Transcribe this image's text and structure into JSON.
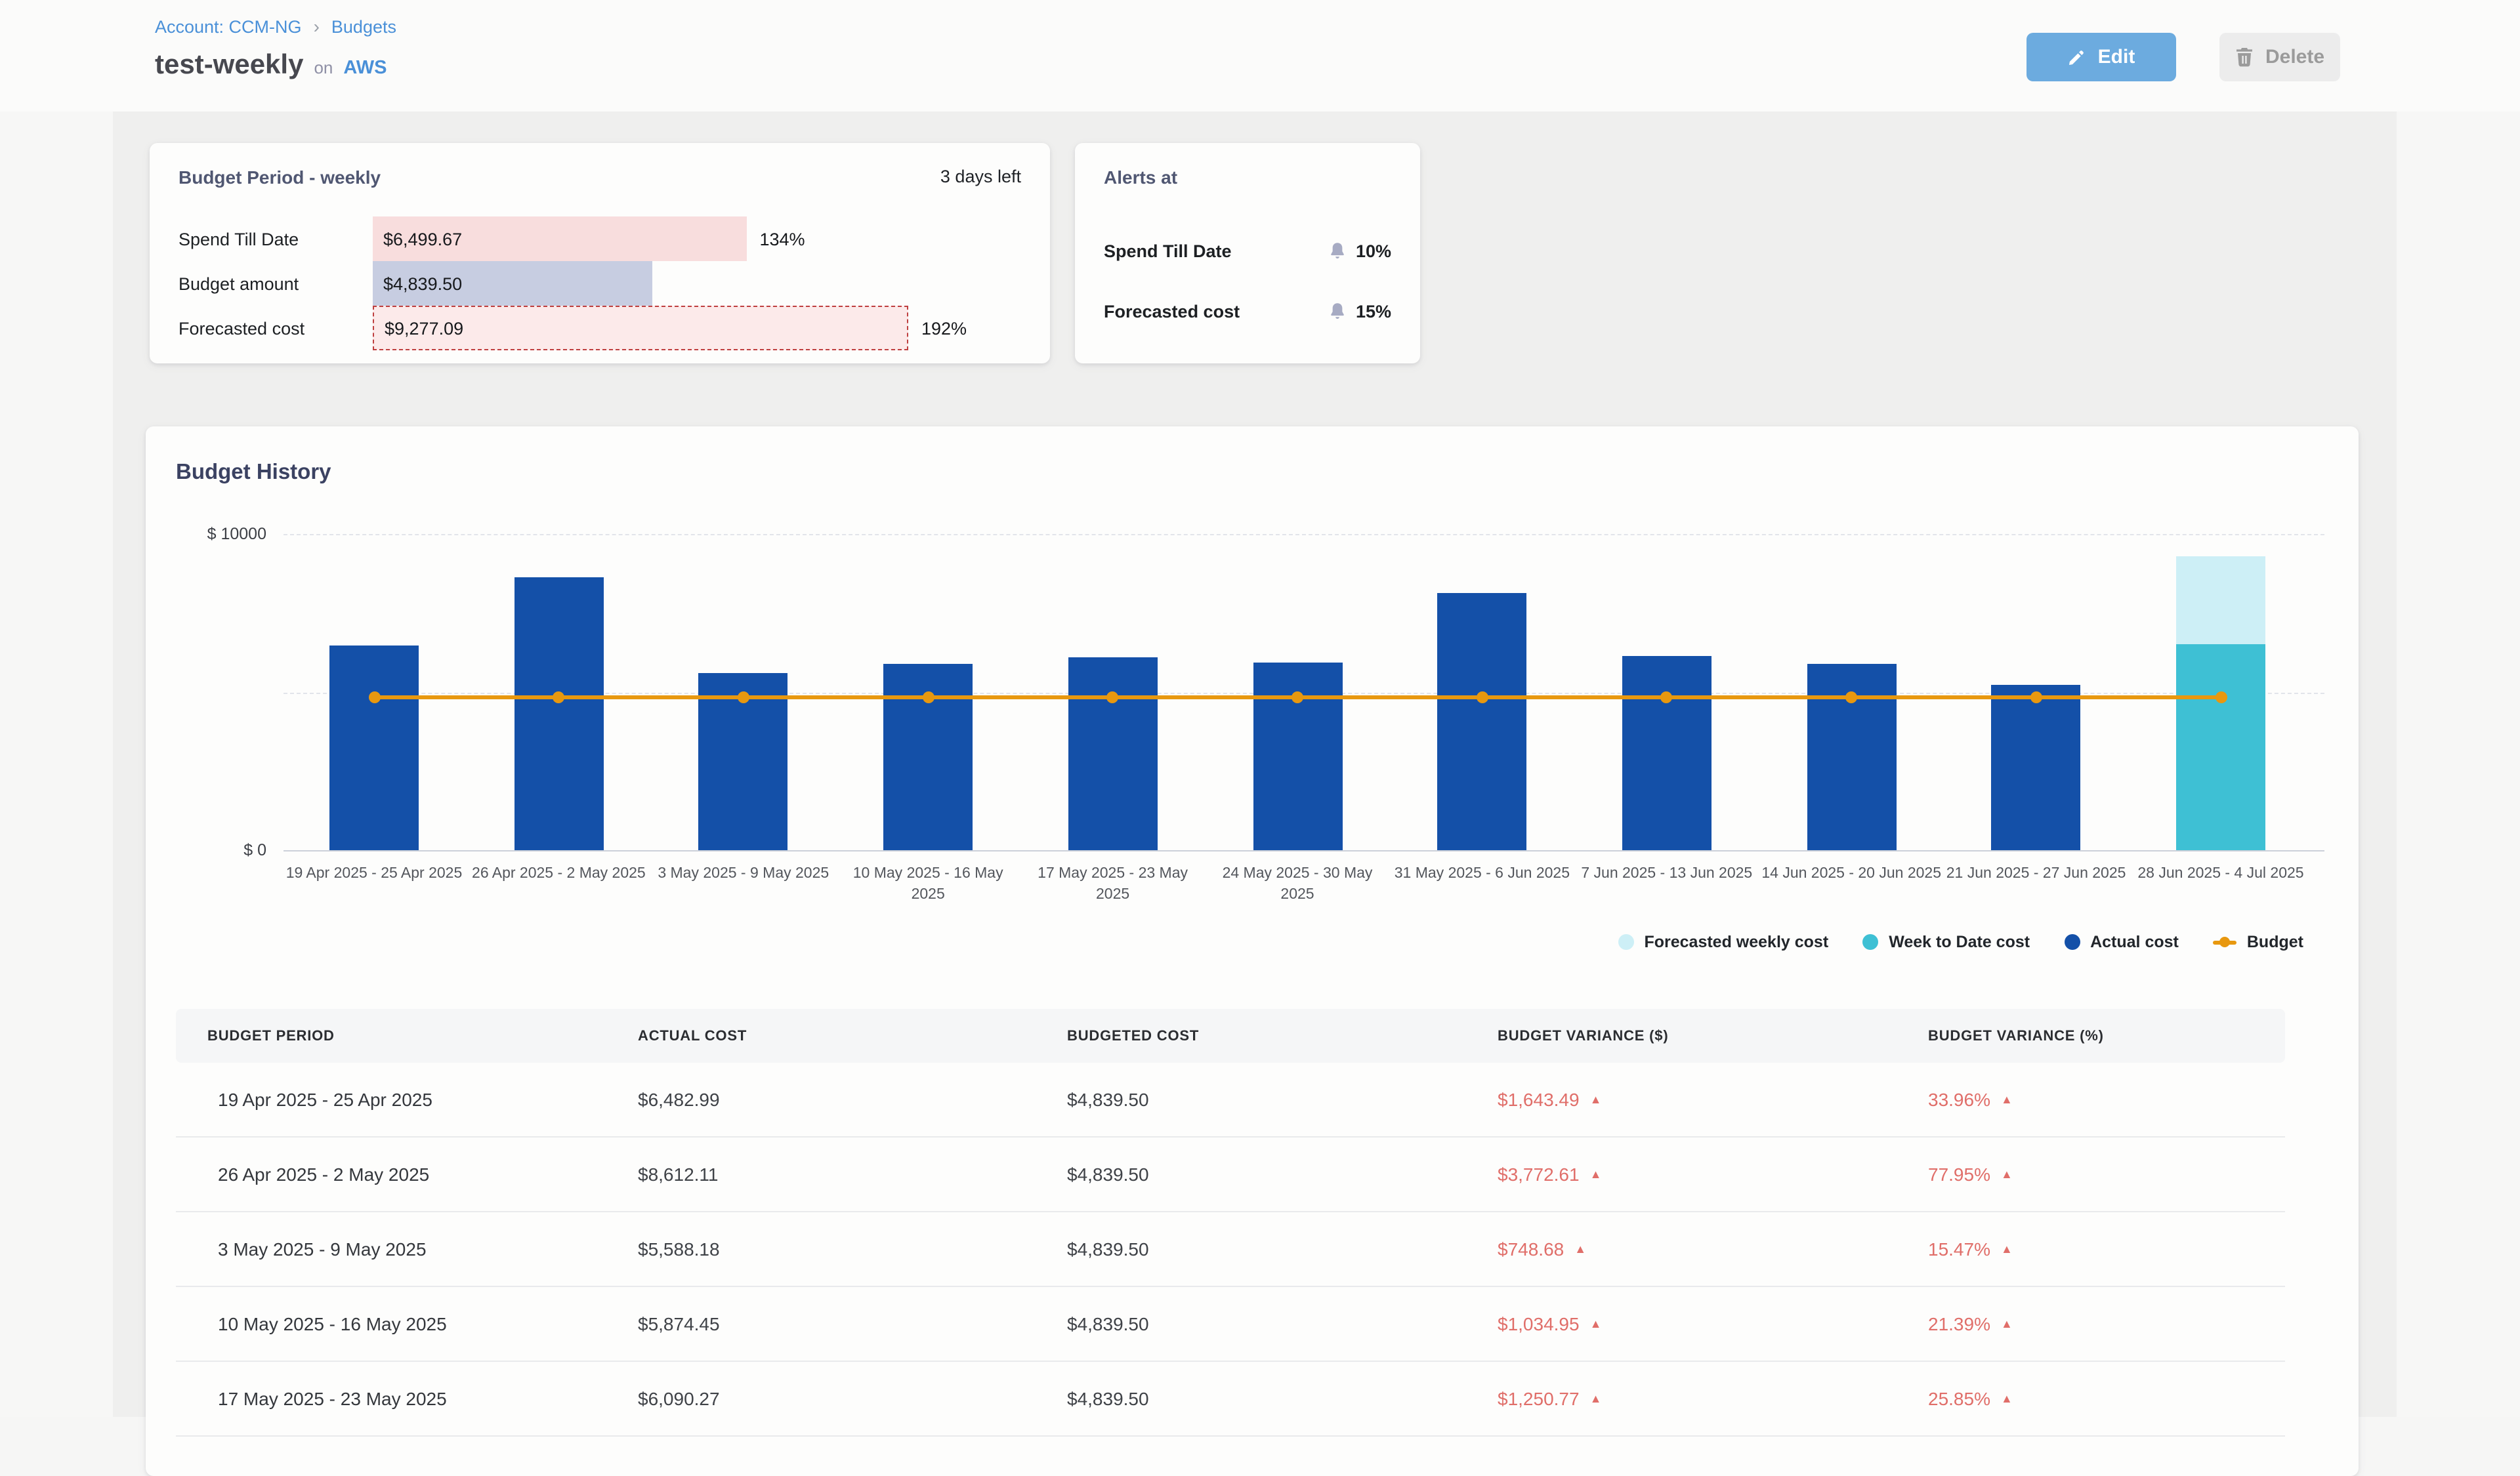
{
  "breadcrumb": {
    "account": "Account: CCM-NG",
    "separator": "›",
    "page": "Budgets"
  },
  "header": {
    "title": "test-weekly",
    "on_label": "on",
    "provider": "AWS",
    "edit_label": "Edit",
    "delete_label": "Delete"
  },
  "budget_period_card": {
    "title": "Budget Period - weekly",
    "days_left": "3 days left",
    "rows": [
      {
        "label": "Spend Till Date",
        "value": "$6,499.67",
        "percent_label": "134%",
        "percent": 134,
        "style": "spend"
      },
      {
        "label": "Budget amount",
        "value": "$4,839.50",
        "percent_label": "",
        "percent": 100,
        "style": "budget"
      },
      {
        "label": "Forecasted cost",
        "value": "$9,277.09",
        "percent_label": "192%",
        "percent": 192,
        "style": "forecast"
      }
    ]
  },
  "alerts_card": {
    "title": "Alerts at",
    "rows": [
      {
        "label": "Spend Till Date",
        "threshold": "10%"
      },
      {
        "label": "Forecasted cost",
        "threshold": "15%"
      }
    ]
  },
  "chart_data": {
    "type": "bar",
    "title": "Budget History",
    "y_axis": {
      "top_label": "$ 10000",
      "bottom_label": "$ 0",
      "min": 0,
      "max": 10000,
      "mid_gridline": 5000
    },
    "budget_value": 4839.5,
    "colors": {
      "actual": "#1450a8",
      "week_to_date": "#3ec0d4",
      "forecast": "#cdeff6",
      "budget_line": "#e8980f"
    },
    "bars": [
      {
        "period": "19 Apr 2025 - 25 Apr 2025",
        "actual": 6482.99
      },
      {
        "period": "26 Apr 2025 - 2 May 2025",
        "actual": 8612.11
      },
      {
        "period": "3 May 2025 - 9 May 2025",
        "actual": 5588.18
      },
      {
        "period": "10 May 2025 - 16 May 2025",
        "actual": 5874.45
      },
      {
        "period": "17 May 2025 - 23 May 2025",
        "actual": 6090.27
      },
      {
        "period": "24 May 2025 - 30 May 2025",
        "actual": 5920
      },
      {
        "period": "31 May 2025 - 6 Jun 2025",
        "actual": 8150
      },
      {
        "period": "7 Jun 2025 - 13 Jun 2025",
        "actual": 6150
      },
      {
        "period": "14 Jun 2025 - 20 Jun 2025",
        "actual": 5900
      },
      {
        "period": "21 Jun 2025 - 27 Jun 2025",
        "actual": 5230
      },
      {
        "period": "28 Jun 2025 - 4 Jul 2025",
        "week_to_date": 6499.67,
        "forecast": 9277.09
      }
    ],
    "legend": [
      {
        "label": "Forecasted weekly cost",
        "color": "#cdeff6",
        "marker": "dot"
      },
      {
        "label": "Week to Date cost",
        "color": "#3ec0d4",
        "marker": "dot"
      },
      {
        "label": "Actual cost",
        "color": "#1450a8",
        "marker": "dot"
      },
      {
        "label": "Budget",
        "color": "#e8980f",
        "marker": "line"
      }
    ],
    "legend_position": "bottom-right",
    "grid": "horizontal-top-mid-bottom"
  },
  "table": {
    "columns": [
      "Budget Period",
      "Actual Cost",
      "Budgeted Cost",
      "Budget Variance ($)",
      "Budget Variance (%)"
    ],
    "trend_icon": "▲",
    "variance_color": "#e06e69",
    "rows": [
      {
        "period": "19 Apr 2025 - 25 Apr 2025",
        "actual": "$6,482.99",
        "budgeted": "$4,839.50",
        "variance_usd": "$1,643.49",
        "variance_pct": "33.96%"
      },
      {
        "period": "26 Apr 2025 - 2 May 2025",
        "actual": "$8,612.11",
        "budgeted": "$4,839.50",
        "variance_usd": "$3,772.61",
        "variance_pct": "77.95%"
      },
      {
        "period": "3 May 2025 - 9 May 2025",
        "actual": "$5,588.18",
        "budgeted": "$4,839.50",
        "variance_usd": "$748.68",
        "variance_pct": "15.47%"
      },
      {
        "period": "10 May 2025 - 16 May 2025",
        "actual": "$5,874.45",
        "budgeted": "$4,839.50",
        "variance_usd": "$1,034.95",
        "variance_pct": "21.39%"
      },
      {
        "period": "17 May 2025 - 23 May 2025",
        "actual": "$6,090.27",
        "budgeted": "$4,839.50",
        "variance_usd": "$1,250.77",
        "variance_pct": "25.85%"
      }
    ]
  }
}
